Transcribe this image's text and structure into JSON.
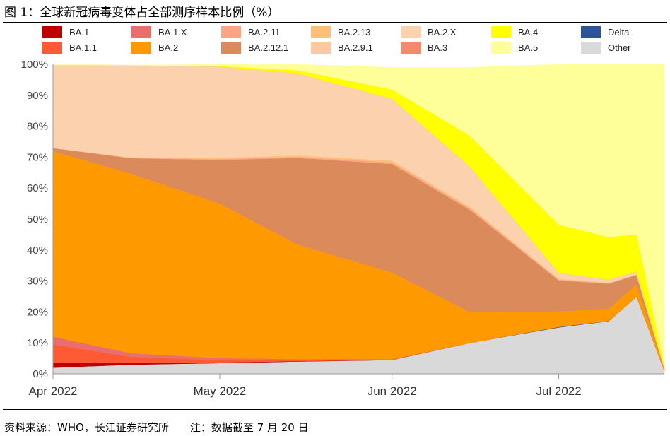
{
  "title": "图 1：全球新冠病毒变体占全部测序样本比例（%）",
  "source": "资料来源：WHO，长江证券研究所　　注：数据截至 7 月 20 日",
  "chart_data": {
    "type": "area",
    "stacked": true,
    "x": [
      "2022-04-01",
      "2022-04-15",
      "2022-05-01",
      "2022-05-15",
      "2022-06-01",
      "2022-06-15",
      "2022-07-01",
      "2022-07-10",
      "2022-07-15",
      "2022-07-20"
    ],
    "x_ticks": [
      "Apr 2022",
      "May 2022",
      "Jun 2022",
      "Jul 2022"
    ],
    "y_ticks": [
      "0%",
      "10%",
      "20%",
      "30%",
      "40%",
      "50%",
      "60%",
      "70%",
      "80%",
      "90%",
      "100%"
    ],
    "ylim": [
      0,
      100
    ],
    "legend_position": "top",
    "series": [
      {
        "name": "Other",
        "color": "#d9d9d9",
        "values": [
          2,
          3,
          3.5,
          4,
          4.5,
          10,
          15,
          17,
          25,
          1
        ]
      },
      {
        "name": "Delta",
        "color": "#2e5597",
        "values": [
          0,
          0,
          0,
          0,
          0,
          0,
          0.2,
          0.1,
          0,
          0
        ]
      },
      {
        "name": "BA.1",
        "color": "#c00000",
        "values": [
          1.5,
          0.5,
          0.2,
          0.1,
          0,
          0,
          0,
          0,
          0,
          0
        ]
      },
      {
        "name": "BA.1.1",
        "color": "#ff5a36",
        "values": [
          6,
          2,
          0.7,
          0.3,
          0.1,
          0,
          0,
          0,
          0,
          0
        ]
      },
      {
        "name": "BA.1.X",
        "color": "#e96f6f",
        "values": [
          2.5,
          1.2,
          0.7,
          0.4,
          0.2,
          0,
          0,
          0,
          0,
          0
        ]
      },
      {
        "name": "BA.2",
        "color": "#ff9900",
        "values": [
          60,
          58,
          50,
          37,
          28,
          10,
          5,
          4,
          4,
          0.4
        ]
      },
      {
        "name": "BA.2.12.1",
        "color": "#db8a5c",
        "values": [
          1,
          5,
          14,
          28,
          35,
          33,
          10,
          8,
          3,
          0.3
        ]
      },
      {
        "name": "BA.2.11",
        "color": "#fca585",
        "values": [
          0,
          0,
          0.3,
          0.3,
          0.5,
          0.5,
          0.2,
          0.2,
          0,
          0
        ]
      },
      {
        "name": "BA.2.13",
        "color": "#ffbe7a",
        "values": [
          0,
          0.2,
          0.4,
          0.5,
          0.6,
          0.5,
          0.3,
          0.2,
          0.1,
          0
        ]
      },
      {
        "name": "BA.2.9.1",
        "color": "#ffc8a0",
        "values": [
          0,
          0,
          0,
          0,
          0,
          0,
          0,
          0,
          0,
          0
        ]
      },
      {
        "name": "BA.2.X",
        "color": "#fcd2ae",
        "values": [
          26.8,
          29.8,
          29.5,
          26.5,
          20,
          13,
          2,
          1,
          1,
          0.1
        ]
      },
      {
        "name": "BA.3",
        "color": "#f4896b",
        "values": [
          0,
          0,
          0,
          0,
          0,
          0,
          0,
          0,
          0,
          0
        ]
      },
      {
        "name": "BA.4",
        "color": "#ffff00",
        "values": [
          0,
          0,
          0.2,
          1,
          3,
          10,
          15.5,
          13.7,
          12,
          1
        ]
      },
      {
        "name": "BA.5",
        "color": "#ffff99",
        "values": [
          0,
          0,
          0.5,
          1.9,
          7.1,
          22,
          51.8,
          55.8,
          54.9,
          97.2
        ]
      }
    ]
  }
}
